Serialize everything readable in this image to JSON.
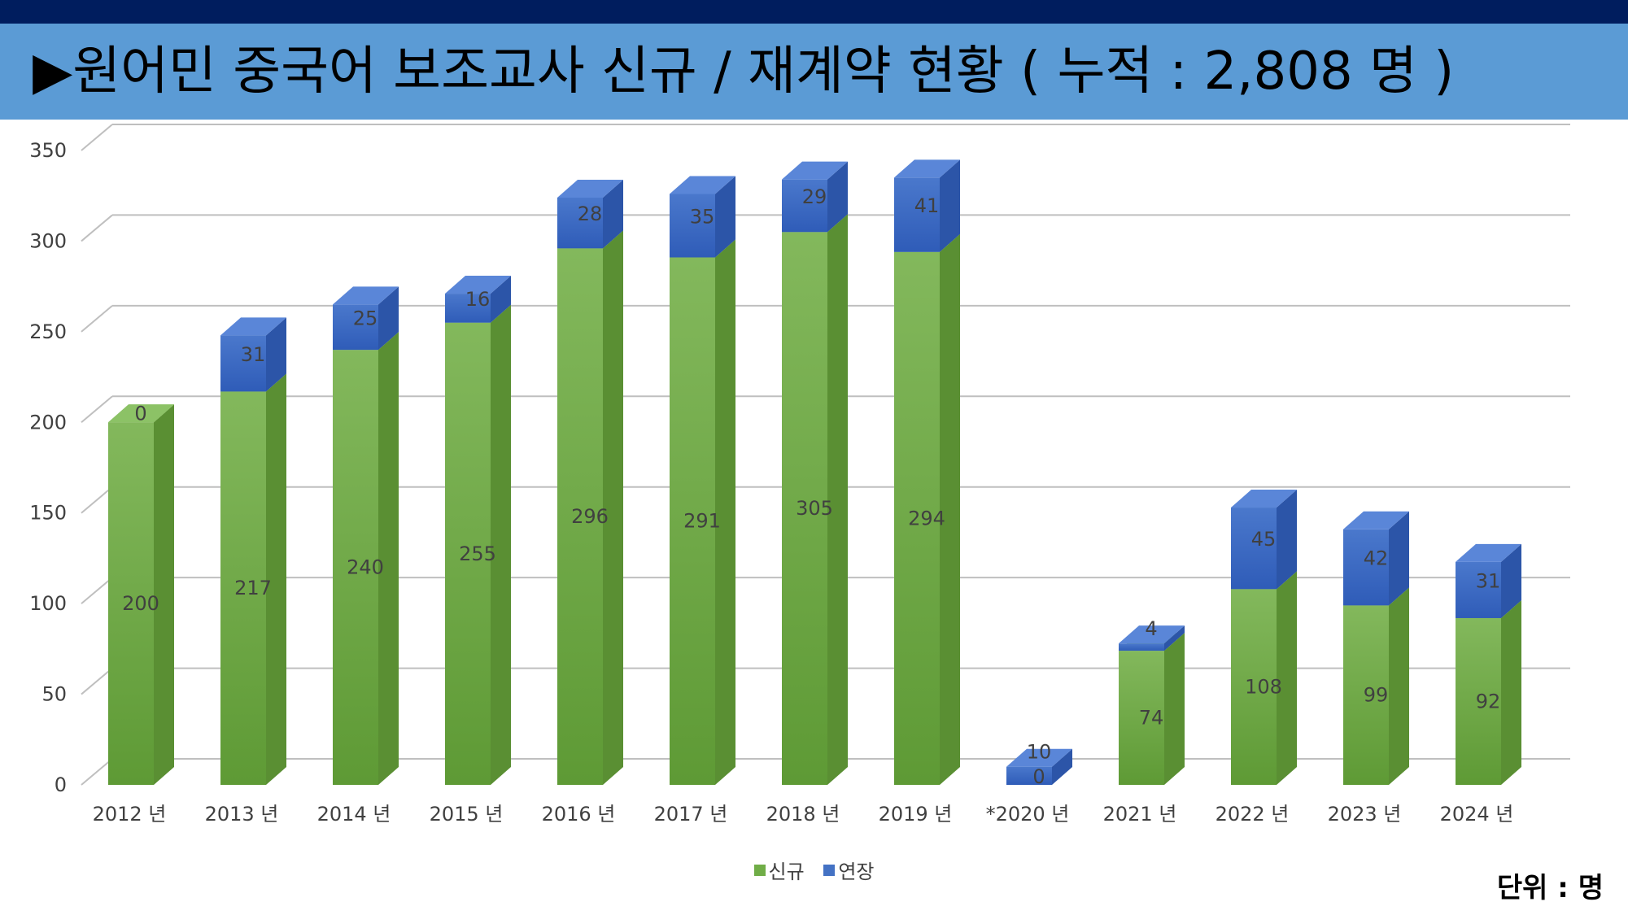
{
  "header": {
    "title": "▶원어민 중국어 보조교사 신규 / 재계약 현황 ( 누적 : 2,808 명 )"
  },
  "unit_label": "단위 : 명",
  "colors": {
    "new": "#70ad47",
    "renew": "#4472c4",
    "header_bar": "#5b9bd5",
    "top_bar": "#001d5e"
  },
  "chart_data": {
    "type": "bar",
    "stacked": true,
    "style": "3d",
    "categories": [
      "2012 년",
      "2013 년",
      "2014 년",
      "2015 년",
      "2016 년",
      "2017 년",
      "2018 년",
      "2019 년",
      "*2020 년",
      "2021 년",
      "2022 년",
      "2023 년",
      "2024 년"
    ],
    "series": [
      {
        "name": "신규",
        "values": [
          200,
          217,
          240,
          255,
          296,
          291,
          305,
          294,
          0,
          74,
          108,
          99,
          92
        ]
      },
      {
        "name": "연장",
        "values": [
          0,
          31,
          25,
          16,
          28,
          35,
          29,
          41,
          10,
          4,
          45,
          42,
          31
        ]
      }
    ],
    "ylim": [
      0,
      350
    ],
    "yticks": [
      0,
      50,
      100,
      150,
      200,
      250,
      300,
      350
    ],
    "grid": true,
    "legend_position": "bottom"
  }
}
